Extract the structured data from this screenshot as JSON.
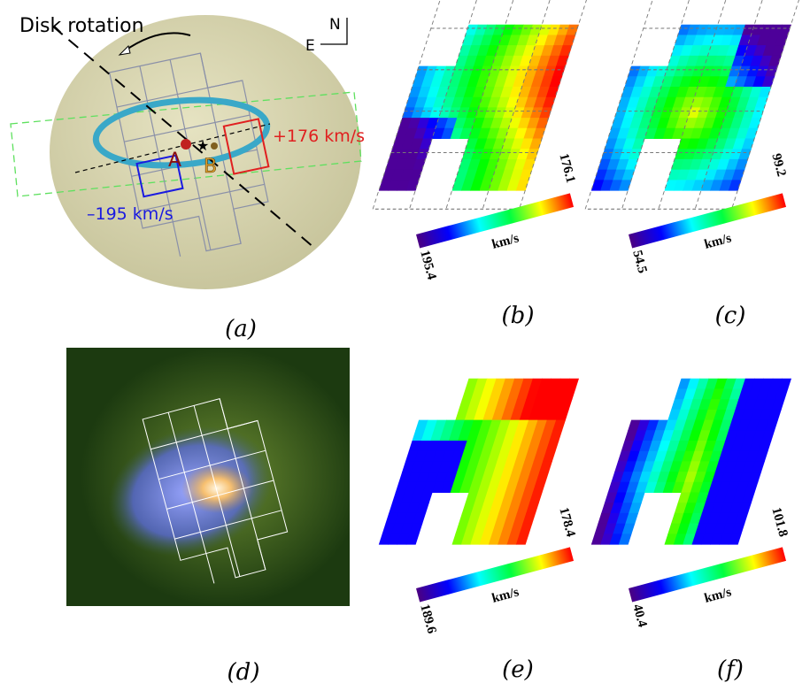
{
  "panels": {
    "a": {
      "title": "Disk rotation",
      "north": "N",
      "east": "E",
      "label_a": "A",
      "label_b": "B",
      "red_velocity": "+176 km/s",
      "blue_velocity": "–195 km/s",
      "caption": "(a)"
    },
    "b": {
      "min": "195.4",
      "max": "176.1",
      "unit": "km/s",
      "caption": "(b)"
    },
    "c": {
      "min": "54.5",
      "max": "99.2",
      "unit": "km/s",
      "caption": "(c)"
    },
    "d": {
      "caption": "(d)"
    },
    "e": {
      "min": "189.6",
      "max": "178.4",
      "unit": "km/s",
      "caption": "(e)"
    },
    "f": {
      "min": "40.4",
      "max": "101.8",
      "unit": "km/s",
      "caption": "(f)"
    }
  }
}
